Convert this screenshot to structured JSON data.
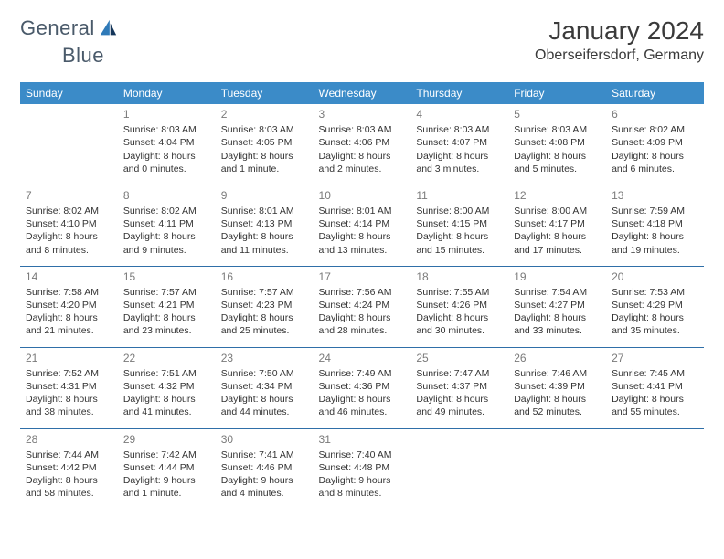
{
  "logo": {
    "text1": "General",
    "text2": "Blue"
  },
  "header": {
    "month": "January 2024",
    "location": "Oberseifersdorf, Germany"
  },
  "colors": {
    "header_bg": "#3b8bc8",
    "header_text": "#ffffff",
    "rule": "#2f6fa8",
    "daynum": "#7a7a7a",
    "body_text": "#333333",
    "logo_gray": "#4a5a6a",
    "logo_blue": "#2f7ab8"
  },
  "weekdays": [
    "Sunday",
    "Monday",
    "Tuesday",
    "Wednesday",
    "Thursday",
    "Friday",
    "Saturday"
  ],
  "weeks": [
    [
      null,
      {
        "d": "1",
        "sr": "Sunrise: 8:03 AM",
        "ss": "Sunset: 4:04 PM",
        "dl": "Daylight: 8 hours and 0 minutes."
      },
      {
        "d": "2",
        "sr": "Sunrise: 8:03 AM",
        "ss": "Sunset: 4:05 PM",
        "dl": "Daylight: 8 hours and 1 minute."
      },
      {
        "d": "3",
        "sr": "Sunrise: 8:03 AM",
        "ss": "Sunset: 4:06 PM",
        "dl": "Daylight: 8 hours and 2 minutes."
      },
      {
        "d": "4",
        "sr": "Sunrise: 8:03 AM",
        "ss": "Sunset: 4:07 PM",
        "dl": "Daylight: 8 hours and 3 minutes."
      },
      {
        "d": "5",
        "sr": "Sunrise: 8:03 AM",
        "ss": "Sunset: 4:08 PM",
        "dl": "Daylight: 8 hours and 5 minutes."
      },
      {
        "d": "6",
        "sr": "Sunrise: 8:02 AM",
        "ss": "Sunset: 4:09 PM",
        "dl": "Daylight: 8 hours and 6 minutes."
      }
    ],
    [
      {
        "d": "7",
        "sr": "Sunrise: 8:02 AM",
        "ss": "Sunset: 4:10 PM",
        "dl": "Daylight: 8 hours and 8 minutes."
      },
      {
        "d": "8",
        "sr": "Sunrise: 8:02 AM",
        "ss": "Sunset: 4:11 PM",
        "dl": "Daylight: 8 hours and 9 minutes."
      },
      {
        "d": "9",
        "sr": "Sunrise: 8:01 AM",
        "ss": "Sunset: 4:13 PM",
        "dl": "Daylight: 8 hours and 11 minutes."
      },
      {
        "d": "10",
        "sr": "Sunrise: 8:01 AM",
        "ss": "Sunset: 4:14 PM",
        "dl": "Daylight: 8 hours and 13 minutes."
      },
      {
        "d": "11",
        "sr": "Sunrise: 8:00 AM",
        "ss": "Sunset: 4:15 PM",
        "dl": "Daylight: 8 hours and 15 minutes."
      },
      {
        "d": "12",
        "sr": "Sunrise: 8:00 AM",
        "ss": "Sunset: 4:17 PM",
        "dl": "Daylight: 8 hours and 17 minutes."
      },
      {
        "d": "13",
        "sr": "Sunrise: 7:59 AM",
        "ss": "Sunset: 4:18 PM",
        "dl": "Daylight: 8 hours and 19 minutes."
      }
    ],
    [
      {
        "d": "14",
        "sr": "Sunrise: 7:58 AM",
        "ss": "Sunset: 4:20 PM",
        "dl": "Daylight: 8 hours and 21 minutes."
      },
      {
        "d": "15",
        "sr": "Sunrise: 7:57 AM",
        "ss": "Sunset: 4:21 PM",
        "dl": "Daylight: 8 hours and 23 minutes."
      },
      {
        "d": "16",
        "sr": "Sunrise: 7:57 AM",
        "ss": "Sunset: 4:23 PM",
        "dl": "Daylight: 8 hours and 25 minutes."
      },
      {
        "d": "17",
        "sr": "Sunrise: 7:56 AM",
        "ss": "Sunset: 4:24 PM",
        "dl": "Daylight: 8 hours and 28 minutes."
      },
      {
        "d": "18",
        "sr": "Sunrise: 7:55 AM",
        "ss": "Sunset: 4:26 PM",
        "dl": "Daylight: 8 hours and 30 minutes."
      },
      {
        "d": "19",
        "sr": "Sunrise: 7:54 AM",
        "ss": "Sunset: 4:27 PM",
        "dl": "Daylight: 8 hours and 33 minutes."
      },
      {
        "d": "20",
        "sr": "Sunrise: 7:53 AM",
        "ss": "Sunset: 4:29 PM",
        "dl": "Daylight: 8 hours and 35 minutes."
      }
    ],
    [
      {
        "d": "21",
        "sr": "Sunrise: 7:52 AM",
        "ss": "Sunset: 4:31 PM",
        "dl": "Daylight: 8 hours and 38 minutes."
      },
      {
        "d": "22",
        "sr": "Sunrise: 7:51 AM",
        "ss": "Sunset: 4:32 PM",
        "dl": "Daylight: 8 hours and 41 minutes."
      },
      {
        "d": "23",
        "sr": "Sunrise: 7:50 AM",
        "ss": "Sunset: 4:34 PM",
        "dl": "Daylight: 8 hours and 44 minutes."
      },
      {
        "d": "24",
        "sr": "Sunrise: 7:49 AM",
        "ss": "Sunset: 4:36 PM",
        "dl": "Daylight: 8 hours and 46 minutes."
      },
      {
        "d": "25",
        "sr": "Sunrise: 7:47 AM",
        "ss": "Sunset: 4:37 PM",
        "dl": "Daylight: 8 hours and 49 minutes."
      },
      {
        "d": "26",
        "sr": "Sunrise: 7:46 AM",
        "ss": "Sunset: 4:39 PM",
        "dl": "Daylight: 8 hours and 52 minutes."
      },
      {
        "d": "27",
        "sr": "Sunrise: 7:45 AM",
        "ss": "Sunset: 4:41 PM",
        "dl": "Daylight: 8 hours and 55 minutes."
      }
    ],
    [
      {
        "d": "28",
        "sr": "Sunrise: 7:44 AM",
        "ss": "Sunset: 4:42 PM",
        "dl": "Daylight: 8 hours and 58 minutes."
      },
      {
        "d": "29",
        "sr": "Sunrise: 7:42 AM",
        "ss": "Sunset: 4:44 PM",
        "dl": "Daylight: 9 hours and 1 minute."
      },
      {
        "d": "30",
        "sr": "Sunrise: 7:41 AM",
        "ss": "Sunset: 4:46 PM",
        "dl": "Daylight: 9 hours and 4 minutes."
      },
      {
        "d": "31",
        "sr": "Sunrise: 7:40 AM",
        "ss": "Sunset: 4:48 PM",
        "dl": "Daylight: 9 hours and 8 minutes."
      },
      null,
      null,
      null
    ]
  ]
}
